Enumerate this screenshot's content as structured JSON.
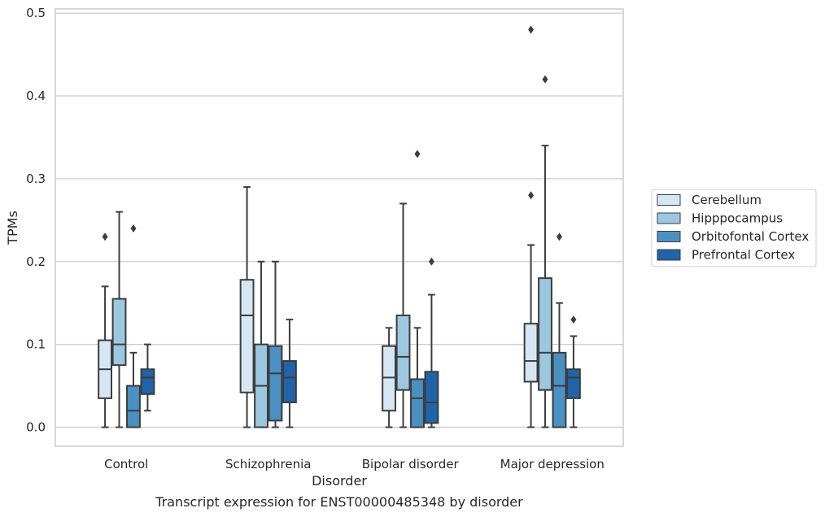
{
  "chart_data": {
    "type": "box",
    "title": "Transcript expression for ENST00000485348 by disorder",
    "xlabel": "Disorder",
    "ylabel": "TPMs",
    "ylim": [
      -0.023,
      0.505
    ],
    "yticks": [
      "0.0",
      "0.1",
      "0.2",
      "0.3",
      "0.4",
      "0.5"
    ],
    "grid": true,
    "legend_position": "right",
    "categories": [
      "Control",
      "Schizophrenia",
      "Bipolar disorder",
      "Major depression"
    ],
    "series": [
      {
        "name": "Cerebellum",
        "color": "#d6e6f4",
        "boxes": [
          {
            "whisker_low": 0.0,
            "q1": 0.035,
            "median": 0.07,
            "q3": 0.105,
            "whisker_high": 0.17,
            "outliers": [
              0.23
            ]
          },
          {
            "whisker_low": 0.0,
            "q1": 0.042,
            "median": 0.135,
            "q3": 0.178,
            "whisker_high": 0.29,
            "outliers": []
          },
          {
            "whisker_low": 0.0,
            "q1": 0.02,
            "median": 0.06,
            "q3": 0.098,
            "whisker_high": 0.12,
            "outliers": []
          },
          {
            "whisker_low": 0.0,
            "q1": 0.055,
            "median": 0.08,
            "q3": 0.125,
            "whisker_high": 0.22,
            "outliers": [
              0.28,
              0.48
            ]
          }
        ]
      },
      {
        "name": "Hipppocampus",
        "color": "#9cc7e0",
        "boxes": [
          {
            "whisker_low": 0.0,
            "q1": 0.075,
            "median": 0.1,
            "q3": 0.155,
            "whisker_high": 0.26,
            "outliers": []
          },
          {
            "whisker_low": 0.0,
            "q1": 0.0,
            "median": 0.05,
            "q3": 0.1,
            "whisker_high": 0.2,
            "outliers": []
          },
          {
            "whisker_low": 0.0,
            "q1": 0.045,
            "median": 0.085,
            "q3": 0.135,
            "whisker_high": 0.27,
            "outliers": []
          },
          {
            "whisker_low": 0.0,
            "q1": 0.045,
            "median": 0.09,
            "q3": 0.18,
            "whisker_high": 0.34,
            "outliers": [
              0.42
            ]
          }
        ]
      },
      {
        "name": "Orbitofontal Cortex",
        "color": "#4a90c2",
        "boxes": [
          {
            "whisker_low": 0.0,
            "q1": 0.0,
            "median": 0.02,
            "q3": 0.05,
            "whisker_high": 0.09,
            "outliers": [
              0.24
            ]
          },
          {
            "whisker_low": 0.0,
            "q1": 0.008,
            "median": 0.065,
            "q3": 0.098,
            "whisker_high": 0.2,
            "outliers": []
          },
          {
            "whisker_low": 0.0,
            "q1": 0.0,
            "median": 0.035,
            "q3": 0.058,
            "whisker_high": 0.12,
            "outliers": [
              0.33
            ]
          },
          {
            "whisker_low": 0.0,
            "q1": 0.0,
            "median": 0.05,
            "q3": 0.09,
            "whisker_high": 0.15,
            "outliers": [
              0.23
            ]
          }
        ]
      },
      {
        "name": "Prefrontal Cortex",
        "color": "#1f63a8",
        "boxes": [
          {
            "whisker_low": 0.02,
            "q1": 0.04,
            "median": 0.06,
            "q3": 0.07,
            "whisker_high": 0.1,
            "outliers": []
          },
          {
            "whisker_low": 0.0,
            "q1": 0.03,
            "median": 0.06,
            "q3": 0.08,
            "whisker_high": 0.13,
            "outliers": []
          },
          {
            "whisker_low": 0.0,
            "q1": 0.005,
            "median": 0.03,
            "q3": 0.067,
            "whisker_high": 0.16,
            "outliers": [
              0.2
            ]
          },
          {
            "whisker_low": 0.0,
            "q1": 0.035,
            "median": 0.06,
            "q3": 0.07,
            "whisker_high": 0.11,
            "outliers": [
              0.13
            ]
          }
        ]
      }
    ]
  }
}
